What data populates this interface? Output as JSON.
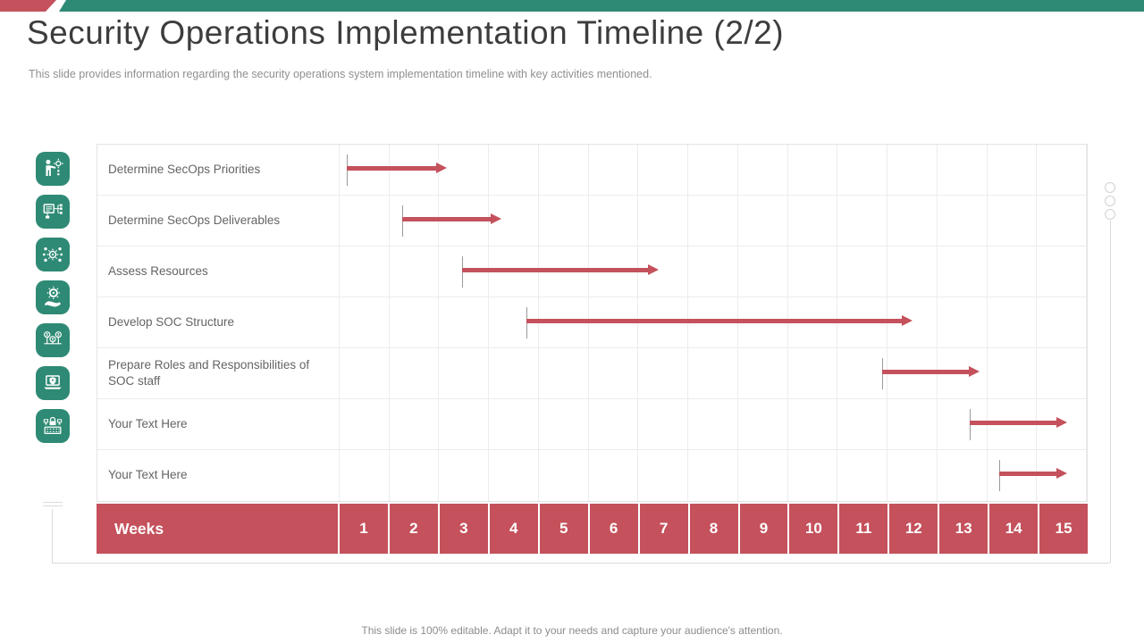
{
  "slide": {
    "title": "Security Operations Implementation Timeline (2/2)",
    "subtitle": "This slide provides information regarding the security operations system implementation timeline with key activities mentioned.",
    "footer": "This slide is 100% editable. Adapt it to your needs and capture your audience's attention."
  },
  "colors": {
    "teal": "#2E8A74",
    "red": "#C4515C",
    "gridline": "#ECECEC",
    "label_text": "#646464"
  },
  "chart_data": {
    "type": "gantt",
    "title": "Security Operations Implementation Timeline (2/2)",
    "unit_label": "Weeks",
    "axis_range_weeks": [
      1,
      15
    ],
    "week_ticks": [
      "1",
      "2",
      "3",
      "4",
      "5",
      "6",
      "7",
      "8",
      "9",
      "10",
      "11",
      "12",
      "13",
      "14",
      "15"
    ],
    "grid": true,
    "tasks": [
      {
        "label": "Determine SecOps Priorities",
        "icon": "presenter-gear-icon",
        "start_week": 1.15,
        "end_week": 3.15
      },
      {
        "label": "Determine SecOps Deliverables",
        "icon": "board-hierarchy-icon",
        "start_week": 2.25,
        "end_week": 4.25
      },
      {
        "label": "Assess Resources",
        "icon": "gear-network-icon",
        "start_week": 3.45,
        "end_week": 7.4
      },
      {
        "label": "Develop SOC Structure",
        "icon": "hand-gear-icon",
        "start_week": 4.75,
        "end_week": 12.5
      },
      {
        "label": "Prepare Roles and Responsibilities of SOC staff",
        "icon": "team-icon",
        "start_week": 11.9,
        "end_week": 13.85
      },
      {
        "label": "Your Text Here",
        "icon": "laptop-shield-icon",
        "start_week": 13.65,
        "end_week": 15.6
      },
      {
        "label": "Your Text Here",
        "icon": "keyboard-lock-icon",
        "start_week": 14.25,
        "end_week": 15.6
      }
    ]
  }
}
